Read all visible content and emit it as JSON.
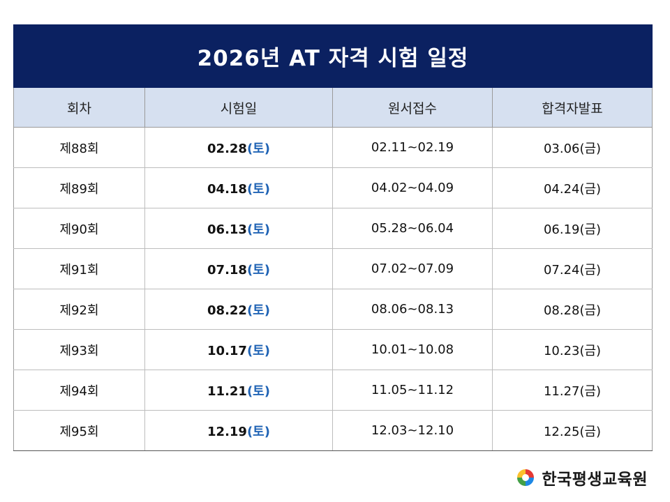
{
  "title": "2026년 AT 자격 시험 일정",
  "headers": {
    "round": "회차",
    "exam_date": "시험일",
    "application": "원서접수",
    "result": "합격자발표"
  },
  "rows": [
    {
      "round": "제88회",
      "exam_date": "02.28",
      "exam_day": "(토)",
      "application": "02.11~02.19",
      "result": "03.06(금)"
    },
    {
      "round": "제89회",
      "exam_date": "04.18",
      "exam_day": "(토)",
      "application": "04.02~04.09",
      "result": "04.24(금)"
    },
    {
      "round": "제90회",
      "exam_date": "06.13",
      "exam_day": "(토)",
      "application": "05.28~06.04",
      "result": "06.19(금)"
    },
    {
      "round": "제91회",
      "exam_date": "07.18",
      "exam_day": "(토)",
      "application": "07.02~07.09",
      "result": "07.24(금)"
    },
    {
      "round": "제92회",
      "exam_date": "08.22",
      "exam_day": "(토)",
      "application": "08.06~08.13",
      "result": "08.28(금)"
    },
    {
      "round": "제93회",
      "exam_date": "10.17",
      "exam_day": "(토)",
      "application": "10.01~10.08",
      "result": "10.23(금)"
    },
    {
      "round": "제94회",
      "exam_date": "11.21",
      "exam_day": "(토)",
      "application": "11.05~11.12",
      "result": "11.27(금)"
    },
    {
      "round": "제95회",
      "exam_date": "12.19",
      "exam_day": "(토)",
      "application": "12.03~12.10",
      "result": "12.25(금)"
    }
  ],
  "logo": {
    "text": "한국평생교육원",
    "icon": "swirl-logo-icon"
  },
  "colors": {
    "title_bg": "#0b2161",
    "header_bg": "#d6e0f0",
    "day_accent": "#1f63b5"
  }
}
